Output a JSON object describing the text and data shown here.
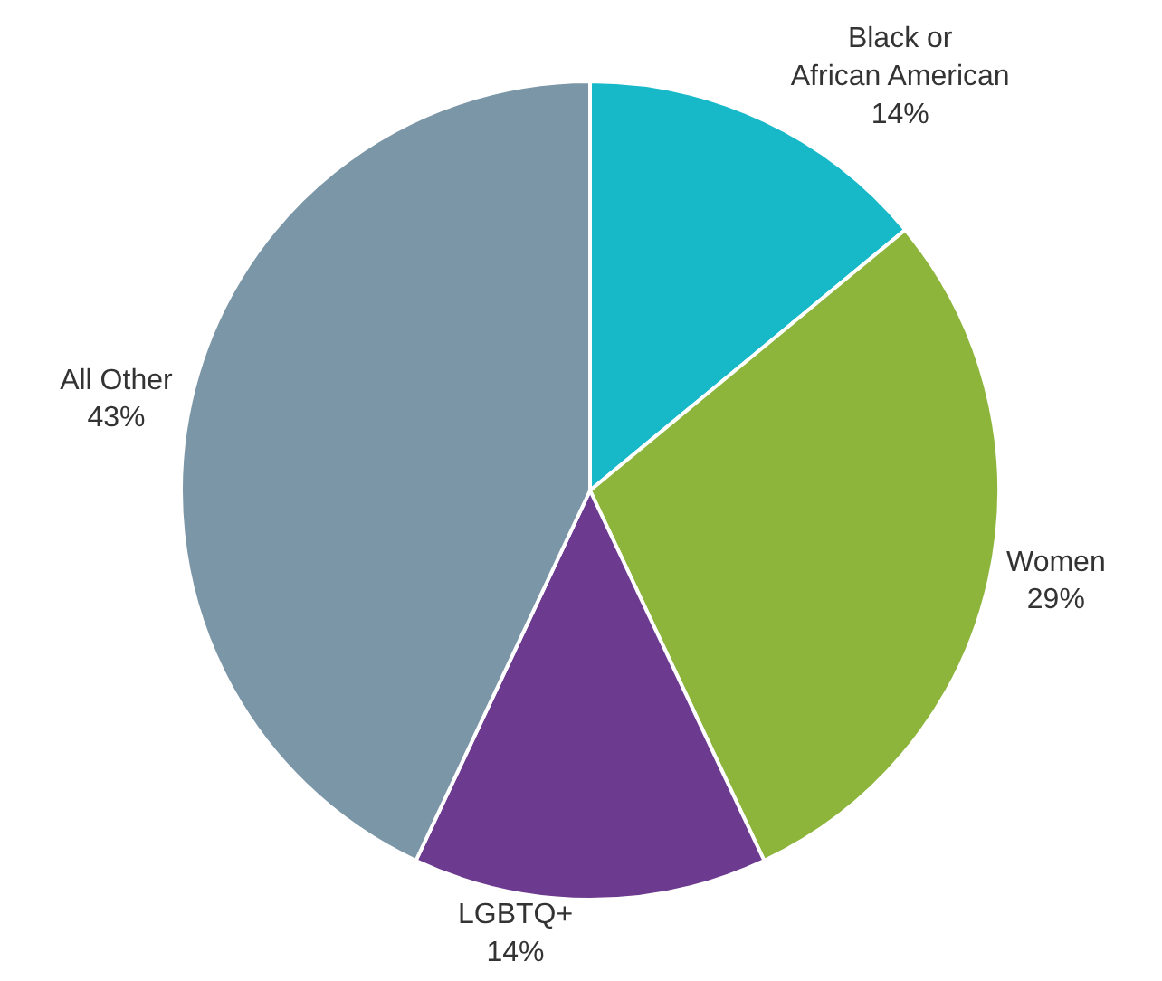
{
  "chart_data": {
    "type": "pie",
    "categories": [
      "Black or African American",
      "Women",
      "LGBTQ+",
      "All Other"
    ],
    "values": [
      14,
      29,
      14,
      43
    ],
    "value_labels": [
      "14%",
      "29%",
      "14%",
      "43%"
    ],
    "colors": [
      "#17b8c8",
      "#8db53c",
      "#6c3a8e",
      "#7b96a6"
    ],
    "legend": false
  }
}
